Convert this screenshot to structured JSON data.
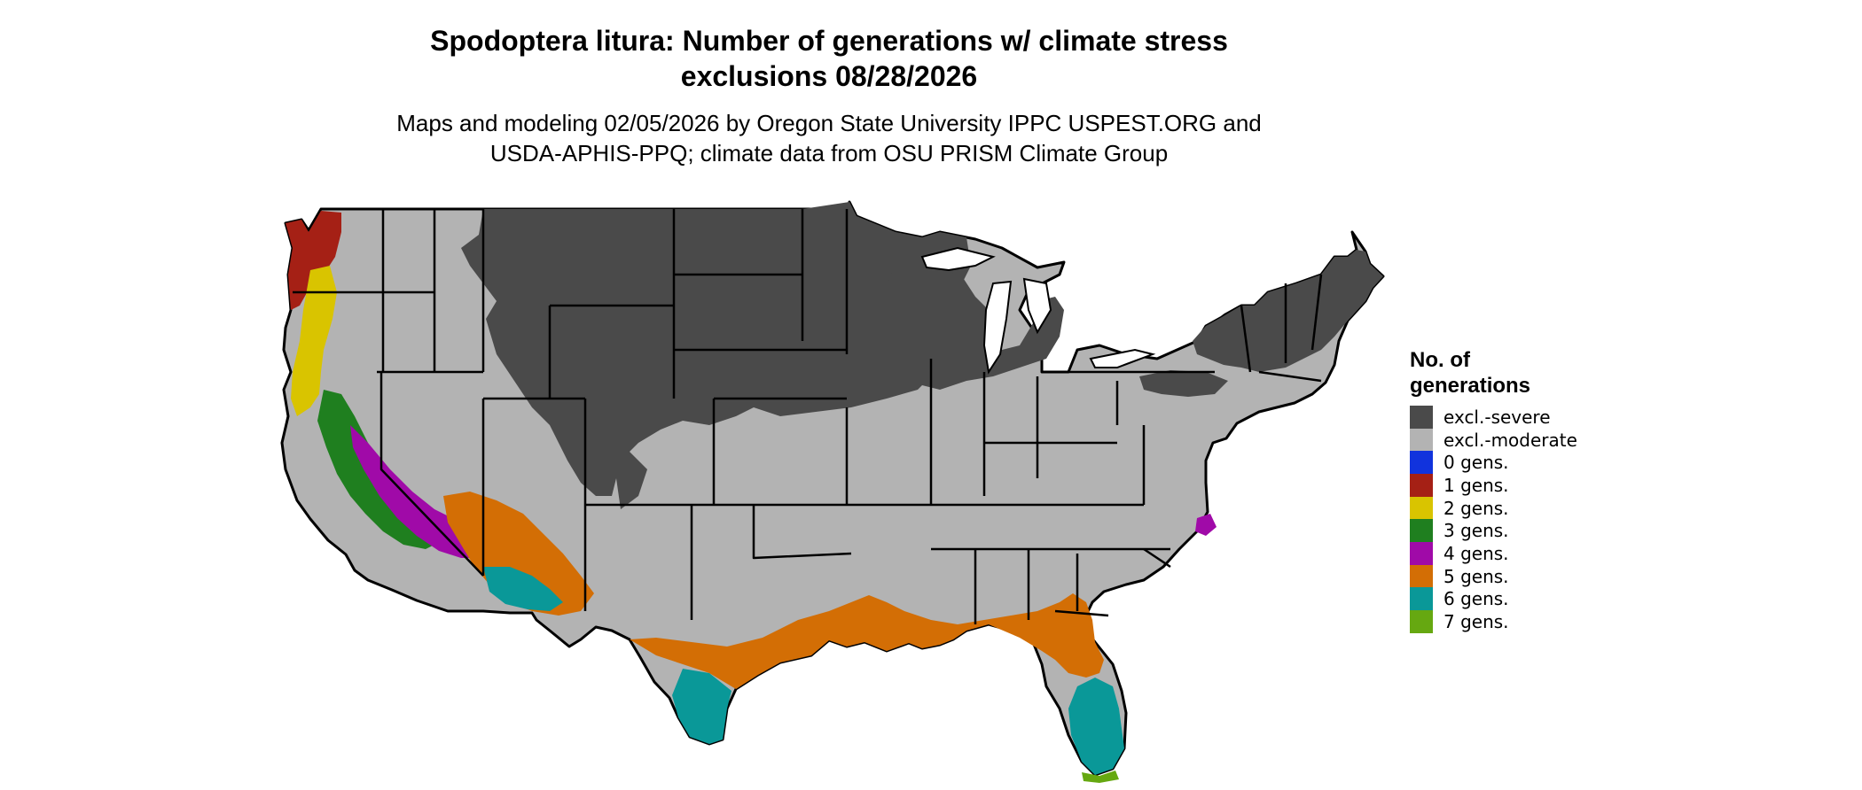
{
  "title": {
    "line1": "Spodoptera litura: Number of generations w/ climate stress",
    "line2": "exclusions 08/28/2026"
  },
  "subtitle": {
    "line1": "Maps and modeling 02/05/2026 by Oregon State University IPPC USPEST.ORG and",
    "line2": "USDA-APHIS-PPQ; climate data from OSU PRISM Climate Group"
  },
  "legend": {
    "title_line1": "No. of",
    "title_line2": "generations",
    "items": [
      {
        "label": "excl.-severe",
        "color": "#4a4a4a"
      },
      {
        "label": "excl.-moderate",
        "color": "#b3b3b3"
      },
      {
        "label": "0 gens.",
        "color": "#1133dd"
      },
      {
        "label": "1 gens.",
        "color": "#a52015"
      },
      {
        "label": "2 gens.",
        "color": "#d9c400"
      },
      {
        "label": "3 gens.",
        "color": "#1f7f1f"
      },
      {
        "label": "4 gens.",
        "color": "#a00aa8"
      },
      {
        "label": "5 gens.",
        "color": "#d36e05"
      },
      {
        "label": "6 gens.",
        "color": "#0a9898"
      },
      {
        "label": "7 gens.",
        "color": "#66a811"
      }
    ]
  }
}
